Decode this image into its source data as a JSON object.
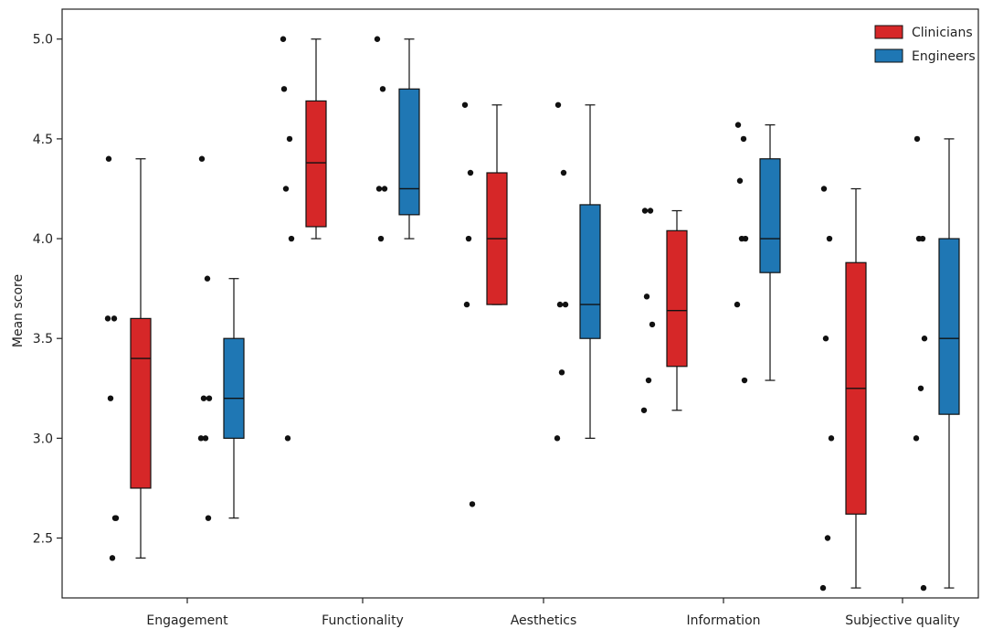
{
  "chart_data": {
    "type": "box",
    "title": "",
    "xlabel": "",
    "ylabel": "Mean score",
    "ylim": [
      2.2,
      5.15
    ],
    "yticks": [
      "2.5",
      "3.0",
      "3.5",
      "4.0",
      "4.5",
      "5.0"
    ],
    "categories": [
      "Engagement",
      "Functionality",
      "Aesthetics",
      "Information",
      "Subjective quality"
    ],
    "legend": {
      "position": "top-right"
    },
    "series": [
      {
        "name": "Clinicians",
        "color": "#d62728",
        "boxes": [
          {
            "whisker_low": 2.4,
            "q1": 2.75,
            "median": 3.4,
            "q3": 3.6,
            "whisker_high": 4.4,
            "points": [
              4.4,
              3.6,
              3.2,
              2.6,
              2.4,
              3.6,
              2.6
            ]
          },
          {
            "whisker_low": 4.0,
            "q1": 4.06,
            "median": 4.38,
            "q3": 4.69,
            "whisker_high": 5.0,
            "points": [
              4.75,
              4.5,
              4.25,
              4.0,
              3.0,
              5.0
            ]
          },
          {
            "whisker_low": 3.67,
            "q1": 3.67,
            "median": 4.0,
            "q3": 4.33,
            "whisker_high": 4.67,
            "points": [
              4.67,
              4.33,
              3.67,
              2.67,
              4.0
            ]
          },
          {
            "whisker_low": 3.14,
            "q1": 3.36,
            "median": 3.64,
            "q3": 4.04,
            "whisker_high": 4.14,
            "points": [
              4.14,
              4.14,
              3.71,
              3.57,
              3.29,
              3.14
            ]
          },
          {
            "whisker_low": 2.25,
            "q1": 2.62,
            "median": 3.25,
            "q3": 3.88,
            "whisker_high": 4.25,
            "points": [
              4.25,
              4.0,
              3.5,
              3.0,
              2.5,
              2.25
            ]
          }
        ]
      },
      {
        "name": "Engineers",
        "color": "#1f77b4",
        "boxes": [
          {
            "whisker_low": 2.6,
            "q1": 3.0,
            "median": 3.2,
            "q3": 3.5,
            "whisker_high": 3.8,
            "points": [
              4.4,
              3.8,
              3.2,
              3.2,
              3.0,
              3.0,
              2.6
            ]
          },
          {
            "whisker_low": 4.0,
            "q1": 4.12,
            "median": 4.25,
            "q3": 4.75,
            "whisker_high": 5.0,
            "points": [
              5.0,
              4.75,
              4.25,
              4.25,
              4.0
            ]
          },
          {
            "whisker_low": 3.0,
            "q1": 3.5,
            "median": 3.67,
            "q3": 4.17,
            "whisker_high": 4.67,
            "points": [
              4.67,
              4.33,
              3.67,
              3.67,
              3.33,
              3.0
            ]
          },
          {
            "whisker_low": 3.29,
            "q1": 3.83,
            "median": 4.0,
            "q3": 4.4,
            "whisker_high": 4.57,
            "points": [
              4.57,
              4.5,
              4.29,
              4.0,
              4.0,
              3.67,
              3.29
            ]
          },
          {
            "whisker_low": 2.25,
            "q1": 3.12,
            "median": 3.5,
            "q3": 4.0,
            "whisker_high": 4.5,
            "points": [
              4.5,
              4.0,
              4.0,
              3.5,
              3.25,
              3.0,
              2.25
            ]
          }
        ]
      }
    ]
  }
}
